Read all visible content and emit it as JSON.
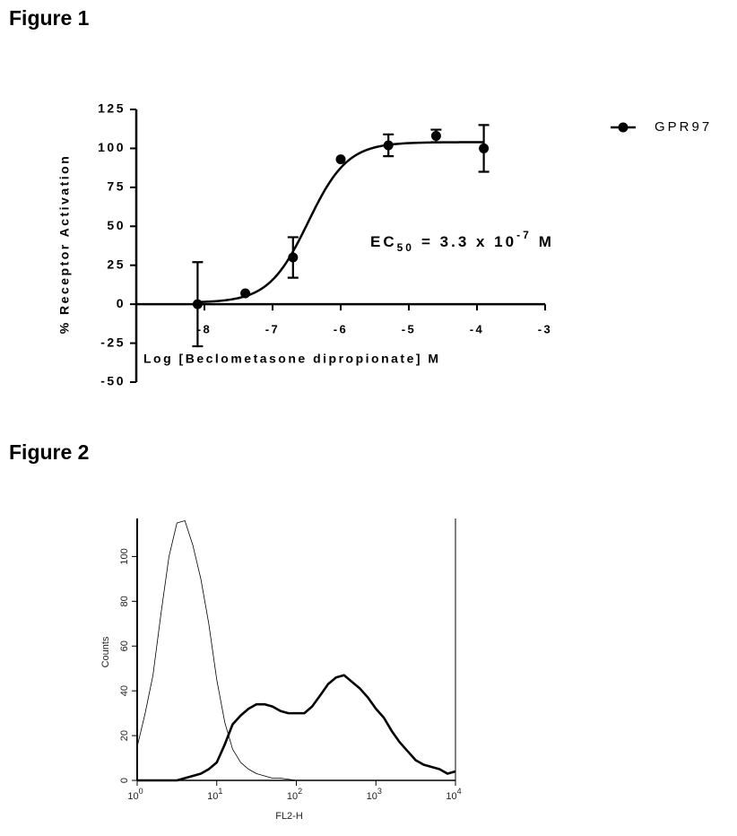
{
  "chart_data": [
    {
      "type": "scatter",
      "title": "Figure 1",
      "x_label": "Log [Beclometasone dipropionate] M",
      "y_label": "% Receptor Activation",
      "xlim": [
        -9,
        -3
      ],
      "xticks": [
        -8,
        -7,
        -6,
        -5,
        -4,
        -3
      ],
      "ylim": [
        -50,
        125
      ],
      "yticks": [
        -50,
        -25,
        0,
        25,
        50,
        75,
        100,
        125
      ],
      "series": [
        {
          "name": "GPR97",
          "color": "#000000",
          "x": [
            -8.1,
            -7.4,
            -6.7,
            -6.0,
            -5.3,
            -4.6,
            -3.9
          ],
          "values": [
            0,
            7,
            30,
            93,
            102,
            108,
            100
          ],
          "errors": [
            27,
            0,
            13,
            0,
            7,
            4,
            15
          ]
        }
      ],
      "fit": {
        "bottom": 1,
        "top": 104,
        "log_ec50": -6.48,
        "hill": 1.5
      },
      "annotation": {
        "text": "EC",
        "subscript": "50",
        "middle": "= 3.3 x 10",
        "superscript": "-7",
        "end": "M"
      },
      "legend": "right"
    },
    {
      "type": "line",
      "title": "Figure 2",
      "x_label": "FL2-H",
      "y_label": "Counts",
      "log_x": true,
      "xlim": [
        1,
        10000
      ],
      "xticks": [
        {
          "value": 1,
          "label": "10",
          "exponent": "0"
        },
        {
          "value": 10,
          "label": "10",
          "exponent": "1"
        },
        {
          "value": 100,
          "label": "10",
          "exponent": "2"
        },
        {
          "value": 1000,
          "label": "10",
          "exponent": "3"
        },
        {
          "value": 10000,
          "label": "10",
          "exponent": "4"
        }
      ],
      "ylim": [
        0,
        117
      ],
      "yticks": [
        0,
        20,
        40,
        60,
        80,
        100
      ],
      "x": [
        1,
        1.26,
        1.58,
        2,
        2.51,
        3.16,
        3.98,
        5.01,
        6.31,
        7.94,
        10,
        12.6,
        15.8,
        20,
        25.1,
        31.6,
        39.8,
        50.1,
        63.1,
        79.4,
        100,
        126,
        158,
        200,
        251,
        316,
        398,
        501,
        631,
        794,
        1000,
        1259,
        1585,
        1995,
        2512,
        3162,
        3981,
        5012,
        6310,
        7943,
        10000
      ],
      "series": [
        {
          "color": "#000000",
          "line_width": 0.8,
          "values": [
            15,
            30,
            47,
            75,
            100,
            115,
            116,
            105,
            90,
            70,
            45,
            26,
            14,
            8,
            5,
            3,
            2,
            1,
            1,
            0.5,
            0,
            0,
            0,
            0,
            0,
            0,
            0,
            0,
            0,
            0,
            0,
            0,
            0,
            0,
            0,
            0,
            0,
            0,
            0,
            0,
            0
          ]
        },
        {
          "color": "#000000",
          "line_width": 2.6,
          "values": [
            0,
            0,
            0,
            0,
            0,
            0,
            1,
            2,
            3,
            5,
            8,
            16,
            25,
            29,
            32,
            34,
            34,
            33,
            31,
            30,
            30,
            30,
            33,
            38,
            43,
            46,
            47,
            44,
            41,
            37,
            32,
            28,
            22,
            17,
            13,
            9,
            7,
            6,
            5,
            3,
            4
          ]
        }
      ]
    }
  ]
}
